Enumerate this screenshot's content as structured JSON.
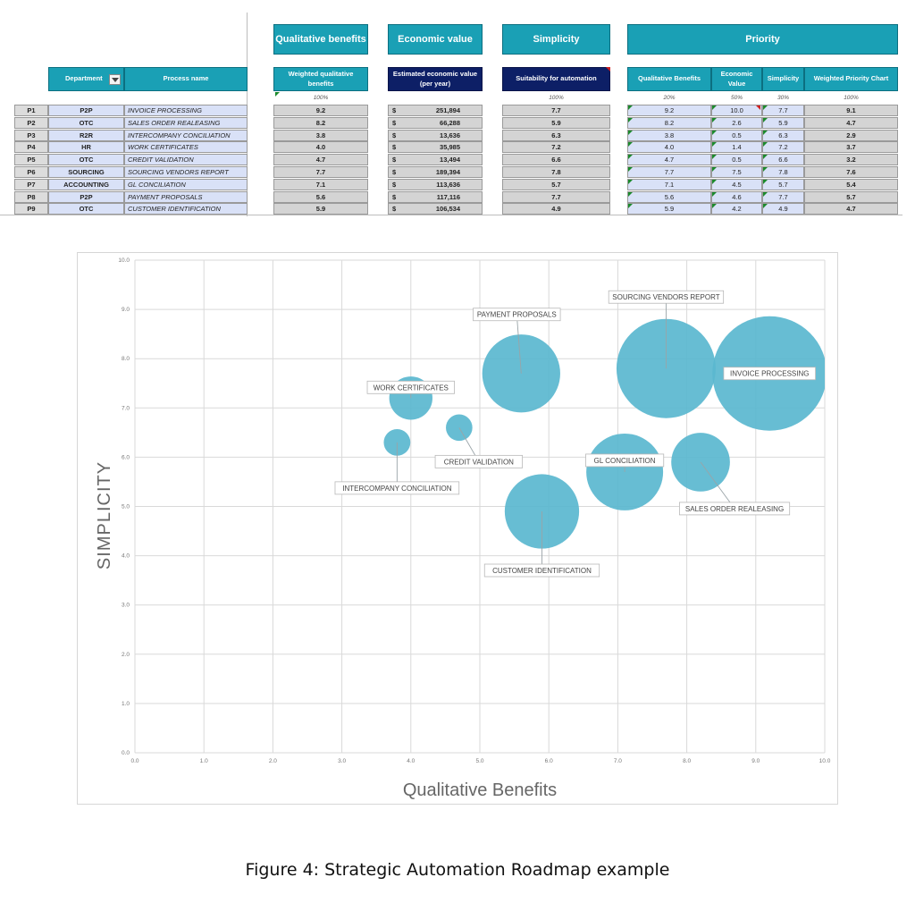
{
  "sheet": {
    "group_headers": {
      "qualitative": "Qualitative benefits",
      "economic": "Economic value",
      "simplicity": "Simplicity",
      "priority": "Priority"
    },
    "columns": {
      "department": "Department",
      "process": "Process name",
      "weighted_qual": "Weighted qualitative benefits",
      "est_econ": "Estimated economic value (per year)",
      "suitability": "Suitability for automation",
      "prio_qual": "Qualitative Benefits",
      "prio_econ": "Economic Value",
      "prio_simp": "Simplicity",
      "prio_weighted": "Weighted Priority Chart"
    },
    "percents": {
      "weighted_qual": "100%",
      "suitability": "100%",
      "prio_qual": "20%",
      "prio_econ": "50%",
      "prio_simp": "30%",
      "prio_weighted": "100%"
    },
    "rows": [
      {
        "id": "P1",
        "dept": "P2P",
        "process": "INVOICE PROCESSING",
        "qual": "9.2",
        "dollar": "$",
        "econ": "251,894",
        "simp": "7.7",
        "p_qual": "9.2",
        "p_econ": "10.0",
        "p_simp": "7.7",
        "p_weighted": "9.1"
      },
      {
        "id": "P2",
        "dept": "OTC",
        "process": "SALES ORDER REALEASING",
        "qual": "8.2",
        "dollar": "$",
        "econ": "66,288",
        "simp": "5.9",
        "p_qual": "8.2",
        "p_econ": "2.6",
        "p_simp": "5.9",
        "p_weighted": "4.7"
      },
      {
        "id": "P3",
        "dept": "R2R",
        "process": "INTERCOMPANY CONCILIATION",
        "qual": "3.8",
        "dollar": "$",
        "econ": "13,636",
        "simp": "6.3",
        "p_qual": "3.8",
        "p_econ": "0.5",
        "p_simp": "6.3",
        "p_weighted": "2.9"
      },
      {
        "id": "P4",
        "dept": "HR",
        "process": "WORK CERTIFICATES",
        "qual": "4.0",
        "dollar": "$",
        "econ": "35,985",
        "simp": "7.2",
        "p_qual": "4.0",
        "p_econ": "1.4",
        "p_simp": "7.2",
        "p_weighted": "3.7"
      },
      {
        "id": "P5",
        "dept": "OTC",
        "process": "CREDIT VALIDATION",
        "qual": "4.7",
        "dollar": "$",
        "econ": "13,494",
        "simp": "6.6",
        "p_qual": "4.7",
        "p_econ": "0.5",
        "p_simp": "6.6",
        "p_weighted": "3.2"
      },
      {
        "id": "P6",
        "dept": "SOURCING",
        "process": "SOURCING VENDORS REPORT",
        "qual": "7.7",
        "dollar": "$",
        "econ": "189,394",
        "simp": "7.8",
        "p_qual": "7.7",
        "p_econ": "7.5",
        "p_simp": "7.8",
        "p_weighted": "7.6"
      },
      {
        "id": "P7",
        "dept": "ACCOUNTING",
        "process": "GL CONCILIATION",
        "qual": "7.1",
        "dollar": "$",
        "econ": "113,636",
        "simp": "5.7",
        "p_qual": "7.1",
        "p_econ": "4.5",
        "p_simp": "5.7",
        "p_weighted": "5.4"
      },
      {
        "id": "P8",
        "dept": "P2P",
        "process": "PAYMENT PROPOSALS",
        "qual": "5.6",
        "dollar": "$",
        "econ": "117,116",
        "simp": "7.7",
        "p_qual": "5.6",
        "p_econ": "4.6",
        "p_simp": "7.7",
        "p_weighted": "5.7"
      },
      {
        "id": "P9",
        "dept": "OTC",
        "process": "CUSTOMER IDENTIFICATION",
        "qual": "5.9",
        "dollar": "$",
        "econ": "106,534",
        "simp": "4.9",
        "p_qual": "5.9",
        "p_econ": "4.2",
        "p_simp": "4.9",
        "p_weighted": "4.7"
      }
    ]
  },
  "chart_data": {
    "type": "scatter",
    "subtype": "bubble",
    "xlabel": "Qualitative Benefits",
    "ylabel": "SIMPLICITY",
    "xlim": [
      0,
      10
    ],
    "ylim": [
      0,
      10
    ],
    "xticks": [
      "0.0",
      "1.0",
      "2.0",
      "3.0",
      "4.0",
      "5.0",
      "6.0",
      "7.0",
      "8.0",
      "9.0",
      "10.0"
    ],
    "yticks": [
      "0.0",
      "1.0",
      "2.0",
      "3.0",
      "4.0",
      "5.0",
      "6.0",
      "7.0",
      "8.0",
      "9.0",
      "10.0"
    ],
    "grid": true,
    "bubble_color": "#5ab7cf",
    "points": [
      {
        "label": "INVOICE PROCESSING",
        "x": 9.2,
        "y": 7.7,
        "size": 251894
      },
      {
        "label": "SALES ORDER REALEASING",
        "x": 8.2,
        "y": 5.9,
        "size": 66288
      },
      {
        "label": "INTERCOMPANY CONCILIATION",
        "x": 3.8,
        "y": 6.3,
        "size": 13636
      },
      {
        "label": "WORK CERTIFICATES",
        "x": 4.0,
        "y": 7.2,
        "size": 35985
      },
      {
        "label": "CREDIT VALIDATION",
        "x": 4.7,
        "y": 6.6,
        "size": 13494
      },
      {
        "label": "SOURCING VENDORS REPORT",
        "x": 7.7,
        "y": 7.8,
        "size": 189394
      },
      {
        "label": "GL CONCILIATION",
        "x": 7.1,
        "y": 5.7,
        "size": 113636
      },
      {
        "label": "PAYMENT PROPOSALS",
        "x": 5.6,
        "y": 7.7,
        "size": 117116
      },
      {
        "label": "CUSTOMER IDENTIFICATION",
        "x": 5.9,
        "y": 4.9,
        "size": 106534
      }
    ]
  },
  "caption": "Figure 4:  Strategic Automation Roadmap example"
}
